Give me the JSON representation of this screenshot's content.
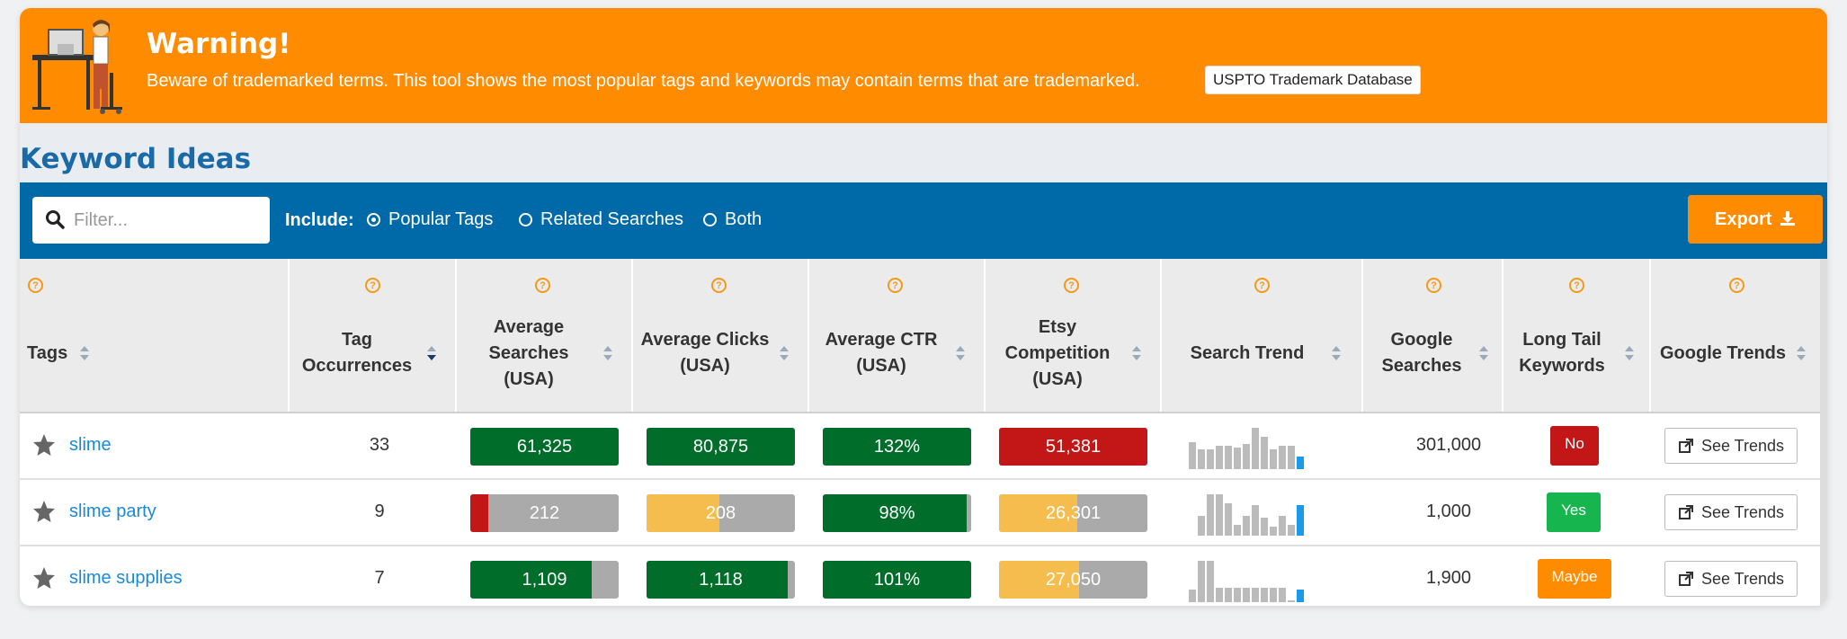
{
  "banner": {
    "title": "Warning!",
    "text": "Beware of trademarked terms. This tool shows the most popular tags and keywords may contain terms that are trademarked.",
    "link_label": "USPTO Trademark Database"
  },
  "section_title": "Keyword Ideas",
  "toolbar": {
    "filter_placeholder": "Filter...",
    "include_label": "Include:",
    "options": [
      "Popular Tags",
      "Related Searches",
      "Both"
    ],
    "selected_option": "Popular Tags",
    "export_label": "Export"
  },
  "columns": [
    "Tags",
    "Tag Occurrences",
    "Average Searches (USA)",
    "Average Clicks (USA)",
    "Average CTR (USA)",
    "Etsy Competition (USA)",
    "Search Trend",
    "Google Searches",
    "Long Tail Keywords",
    "Google Trends"
  ],
  "rows": [
    {
      "tag": "slime",
      "occurrences": "33",
      "avg_searches": "61,325",
      "avg_clicks": "80,875",
      "avg_ctr": "132%",
      "competition": "51,381",
      "google_searches": "301,000",
      "long_tail": "No",
      "trends_label": "See Trends"
    },
    {
      "tag": "slime party",
      "occurrences": "9",
      "avg_searches": "212",
      "avg_clicks": "208",
      "avg_ctr": "98%",
      "competition": "26,301",
      "google_searches": "1,000",
      "long_tail": "Yes",
      "trends_label": "See Trends"
    },
    {
      "tag": "slime supplies",
      "occurrences": "7",
      "avg_searches": "1,109",
      "avg_clicks": "1,118",
      "avg_ctr": "101%",
      "competition": "27,050",
      "google_searches": "1,900",
      "long_tail": "Maybe",
      "trends_label": "See Trends"
    }
  ],
  "bar_levels": [
    {
      "searches": 1.0,
      "clicks": 1.0,
      "ctr": 1.0,
      "competition": 1.0
    },
    {
      "searches": 0.12,
      "clicks": 0.49,
      "ctr": 0.97,
      "competition": 0.53
    },
    {
      "searches": 0.82,
      "clicks": 0.95,
      "ctr": 1.0,
      "competition": 0.54
    }
  ],
  "bar_colors": {
    "green": "#006d2b",
    "red": "#c31717",
    "yellow": "#f4bd4e",
    "gray": "#aaaaaa"
  },
  "long_tail_colors": {
    "No": "#c31717",
    "Yes": "#17b54d",
    "Maybe": "#fe8b00"
  },
  "accent_orange": "#fe8b00",
  "toolbar_blue": "#0069a8",
  "icons": [
    "search-icon",
    "star-icon",
    "download-icon",
    "external-link-icon",
    "sort-icon",
    "help-icon"
  ]
}
